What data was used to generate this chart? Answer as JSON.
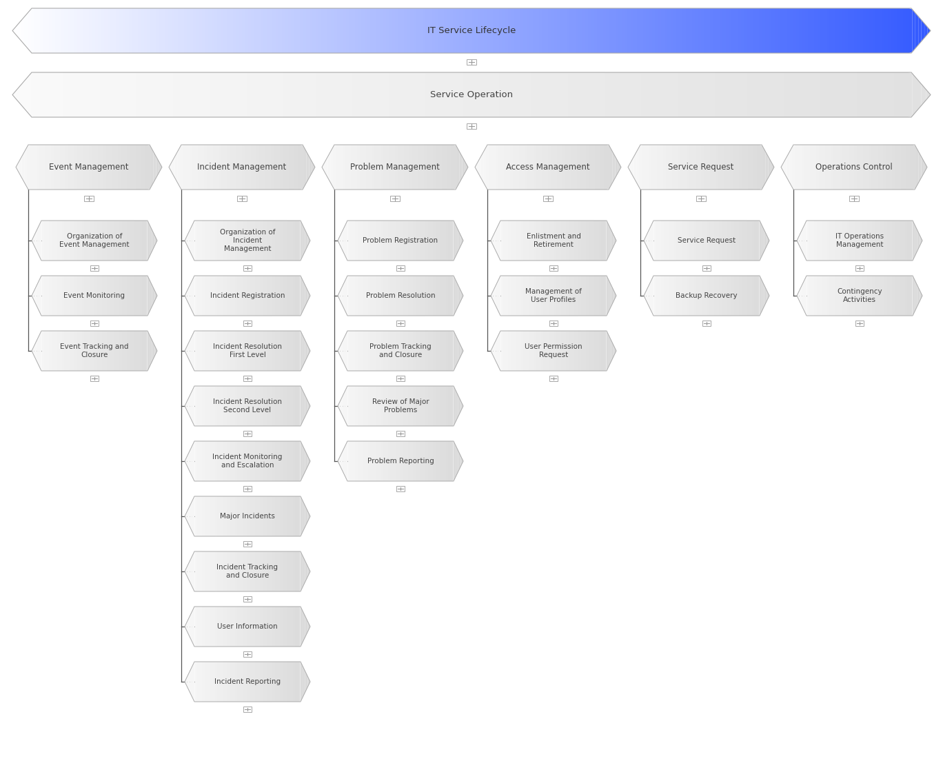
{
  "top_arrow_label": "IT Service Lifecycle",
  "mid_arrow_label": "Service Operation",
  "columns": [
    {
      "header": "Event Management",
      "items": [
        "Organization of\nEvent Management",
        "Event Monitoring",
        "Event Tracking and\nClosure"
      ]
    },
    {
      "header": "Incident Management",
      "items": [
        "Organization of\nIncident\nManagement",
        "Incident Registration",
        "Incident Resolution\nFirst Level",
        "Incident Resolution\nSecond Level",
        "Incident Monitoring\nand Escalation",
        "Major Incidents",
        "Incident Tracking\nand Closure",
        "User Information",
        "Incident Reporting"
      ]
    },
    {
      "header": "Problem Management",
      "items": [
        "Problem Registration",
        "Problem Resolution",
        "Problem Tracking\nand Closure",
        "Review of Major\nProblems",
        "Problem Reporting"
      ]
    },
    {
      "header": "Access Management",
      "items": [
        "Enlistment and\nRetirement",
        "Management of\nUser Profiles",
        "User Permission\nRequest"
      ]
    },
    {
      "header": "Service Request",
      "items": [
        "Service Request",
        "Backup Recovery"
      ]
    },
    {
      "header": "Operations Control",
      "items": [
        "IT Operations\nManagement",
        "Contingency\nActivities"
      ]
    }
  ],
  "text_color": "#444444",
  "connector_color": "#555555",
  "page_bg": "#ffffff",
  "font_size_top": 9.5,
  "font_size_header": 8.5,
  "font_size_item": 7.5
}
